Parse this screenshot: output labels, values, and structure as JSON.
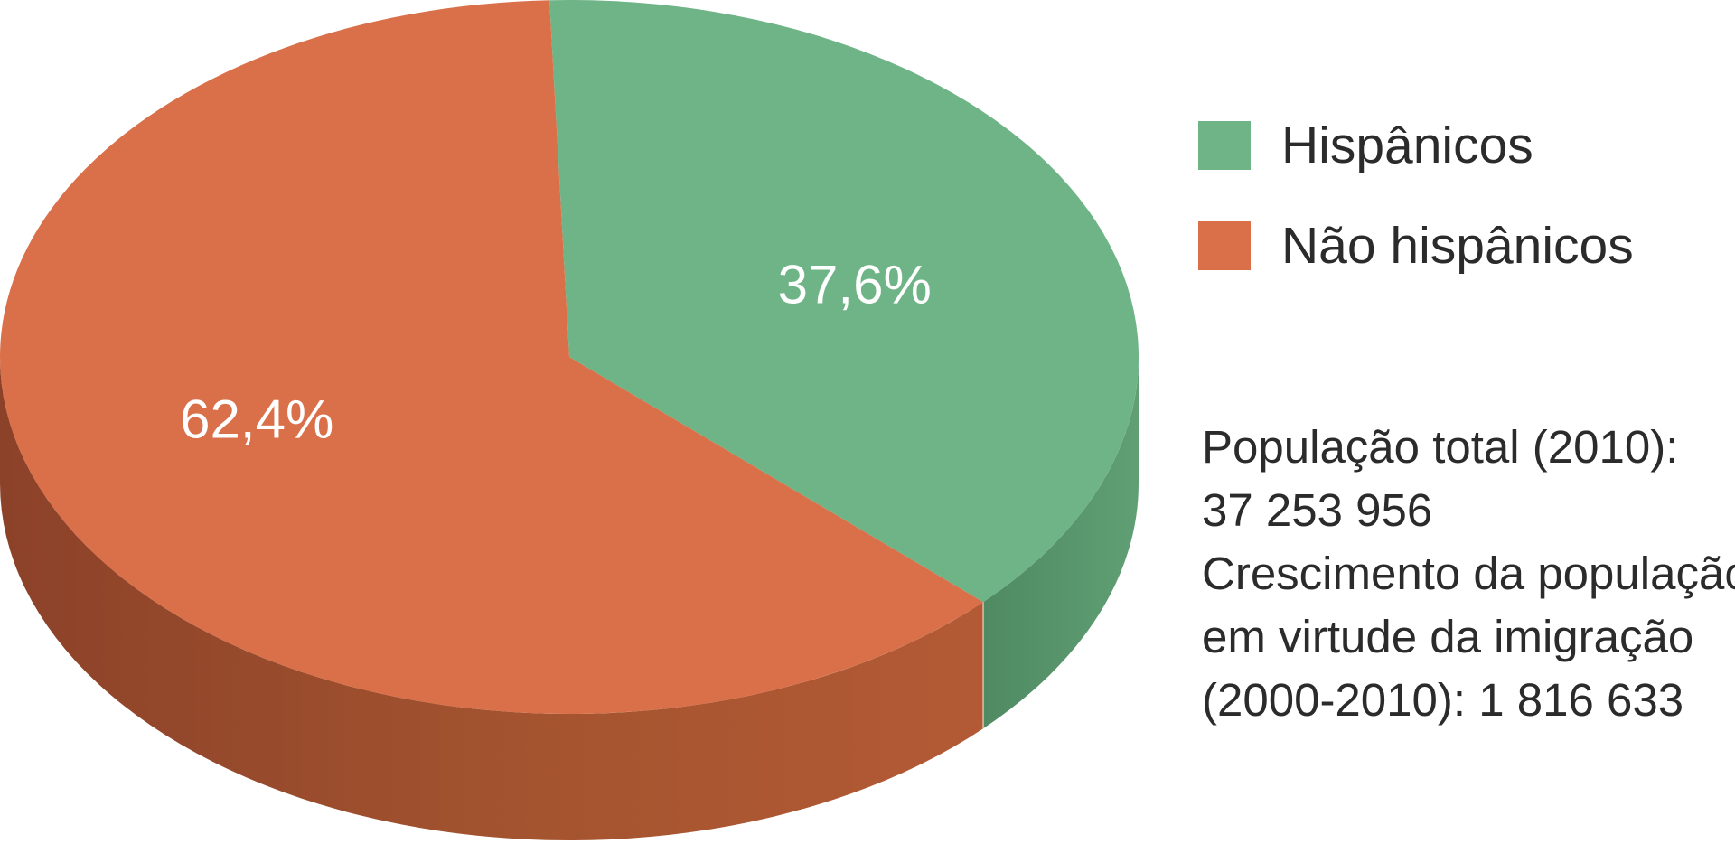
{
  "chart_data": {
    "type": "pie",
    "style": "3d",
    "title": "",
    "categories": [
      "Hispânicos",
      "Não hispânicos"
    ],
    "values": [
      37.6,
      62.4
    ],
    "value_labels": [
      "37,6%",
      "62,4%"
    ],
    "colors": {
      "Hispânicos": "#6fb487",
      "Não hispânicos": "#d9704a"
    },
    "side_colors": {
      "Hispânicos": "#5a936c",
      "Não hispânicos": "#9c4c2d"
    },
    "legend": {
      "placement": "right",
      "items": [
        {
          "label": "Hispânicos",
          "color": "#6fb487"
        },
        {
          "label": "Não hispânicos",
          "color": "#d9704a"
        }
      ]
    },
    "annotations": {
      "lines": [
        "População total (2010):",
        "37 253 956",
        "Crescimento da população",
        "em virtude da imigração",
        "(2000-2010): 1 816 633"
      ]
    }
  }
}
